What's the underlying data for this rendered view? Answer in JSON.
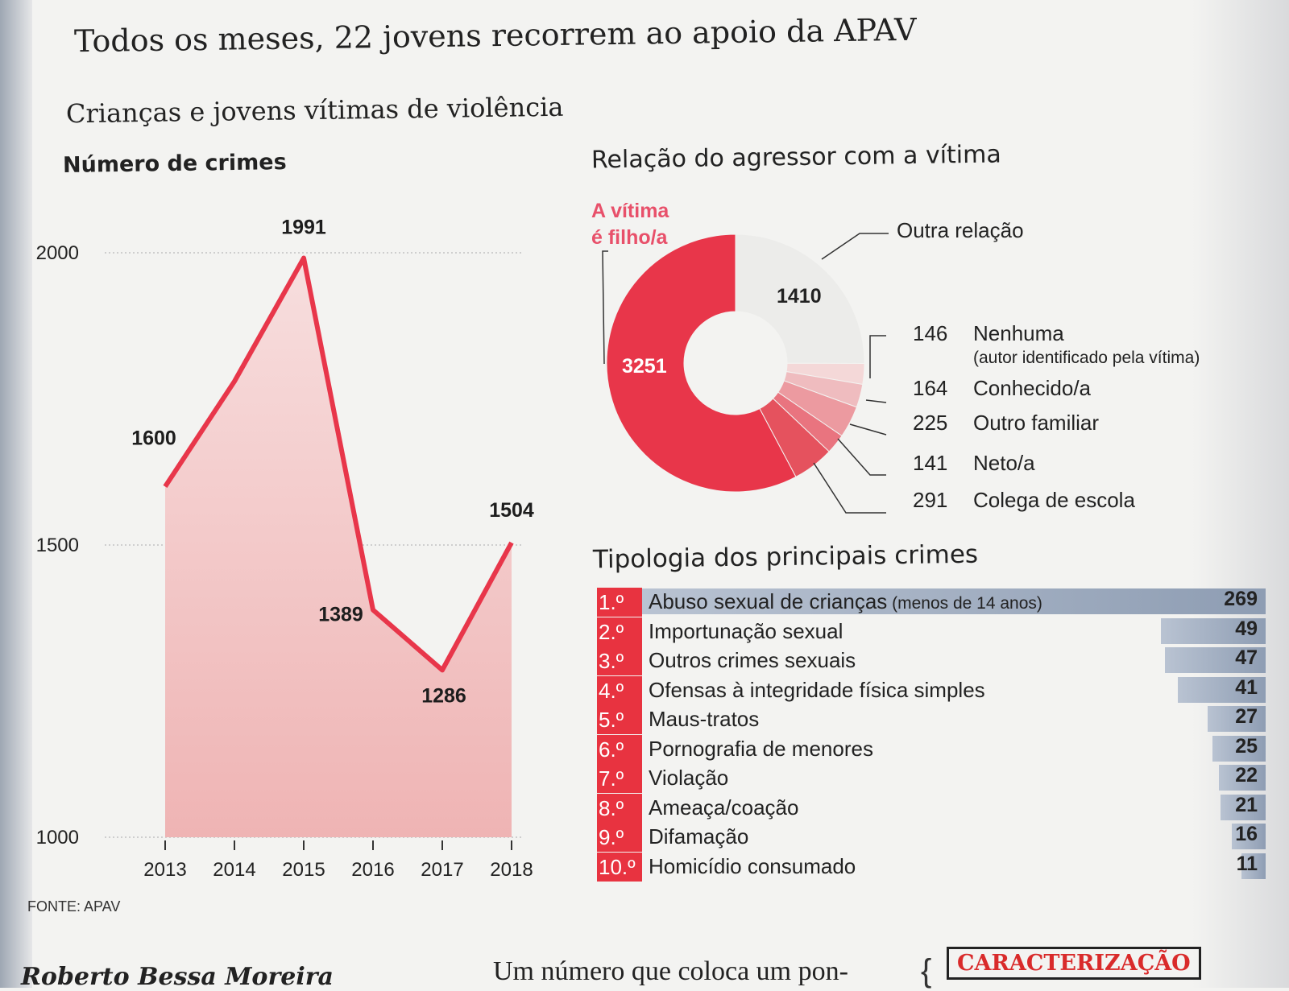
{
  "headline": "Todos os meses, 22 jovens recorrem ao apoio da APAV",
  "subheadline": "Crianças e jovens vítimas de violência",
  "chart_data": [
    {
      "type": "line",
      "title": "Número de crimes",
      "x": [
        "2013",
        "2014",
        "2015",
        "2016",
        "2017",
        "2018"
      ],
      "values": [
        1600,
        1780,
        1991,
        1389,
        1286,
        1504
      ],
      "value_labels": [
        "1600",
        "",
        "1991",
        "1389",
        "1286",
        "1504"
      ],
      "ylim": [
        1000,
        2000
      ],
      "yticks": [
        "1000",
        "1500",
        "2000"
      ],
      "fill": "area"
    },
    {
      "type": "pie",
      "title": "Relação do agressor com a vítima",
      "slices": [
        {
          "name": "A vítima é filho/a",
          "label_lines": [
            "A vítima",
            "é filho/a"
          ],
          "value": 3251,
          "label": "3251",
          "color": "#e8364a"
        },
        {
          "name": "Outra relação",
          "value": 1410,
          "label": "1410",
          "color": "#ececea"
        },
        {
          "name": "Nenhuma",
          "note": "(autor identificado pela vítima)",
          "value": 146,
          "label": "146",
          "color": "#f4d8d8"
        },
        {
          "name": "Conhecido/a",
          "value": 164,
          "label": "164",
          "color": "#efbcbf"
        },
        {
          "name": "Outro familiar",
          "value": 225,
          "label": "225",
          "color": "#ec9aa0"
        },
        {
          "name": "Neto/a",
          "value": 141,
          "label": "141",
          "color": "#e9747f"
        },
        {
          "name": "Colega de escola",
          "value": 291,
          "label": "291",
          "color": "#e5525e"
        }
      ]
    },
    {
      "type": "bar",
      "title": "Tipologia dos principais crimes",
      "orientation": "horizontal",
      "items": [
        {
          "rank": "1.º",
          "label": "Abuso sexual de crianças",
          "label_small": "(menos de 14 anos)",
          "value": 269,
          "value_label": "269"
        },
        {
          "rank": "2.º",
          "label": "Importunação sexual",
          "value": 49,
          "value_label": "49"
        },
        {
          "rank": "3.º",
          "label": "Outros crimes sexuais",
          "value": 47,
          "value_label": "47"
        },
        {
          "rank": "4.º",
          "label": "Ofensas à integridade física simples",
          "value": 41,
          "value_label": "41"
        },
        {
          "rank": "5.º",
          "label": "Maus-tratos",
          "value": 27,
          "value_label": "27"
        },
        {
          "rank": "6.º",
          "label": "Pornografia de menores",
          "value": 25,
          "value_label": "25"
        },
        {
          "rank": "7.º",
          "label": "Violação",
          "value": 22,
          "value_label": "22"
        },
        {
          "rank": "8.º",
          "label": "Ameaça/coação",
          "value": 21,
          "value_label": "21"
        },
        {
          "rank": "9.º",
          "label": "Difamação",
          "value": 16,
          "value_label": "16"
        },
        {
          "rank": "10.º",
          "label": "Homicídio consumado",
          "value": 11,
          "value_label": "11"
        }
      ]
    }
  ],
  "source": "FONTE: APAV",
  "footer": {
    "byline": "Roberto Bessa Moreira",
    "article_start": "Um número que coloca um pon-",
    "tag": "CARACTERIZAÇÃO"
  },
  "colors": {
    "accent": "#e8364a",
    "bar": "#9aa8bd"
  }
}
